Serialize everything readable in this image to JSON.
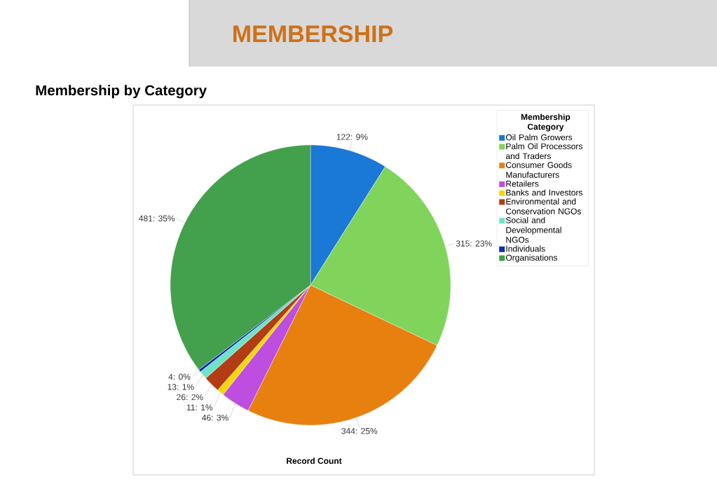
{
  "chart_data": {
    "type": "pie",
    "title": "MEMBERSHIP",
    "subtitle": "Membership by Category",
    "xlabel": "Record Count",
    "legend_title": "Membership Category",
    "categories": [
      "Oil Palm Growers",
      "Palm Oil Processors and Traders",
      "Consumer Goods Manufacturers",
      "Retailers",
      "Banks and Investors",
      "Environmental and Conservation NGOs",
      "Social and Developmental NGOs",
      "Individuals",
      "Organisations"
    ],
    "values": [
      122,
      315,
      344,
      46,
      11,
      26,
      13,
      4,
      481
    ],
    "colors": [
      "#1a78d6",
      "#80d45c",
      "#e8800f",
      "#bd4ee0",
      "#f4d70a",
      "#b23c14",
      "#6ee3c6",
      "#0d2db5",
      "#43a04c"
    ],
    "value_labels": [
      "122: 9%",
      "315: 23%",
      "344: 25%",
      "46: 3%",
      "11: 1%",
      "26: 2%",
      "13: 1%",
      "4: 0%",
      "481: 35%"
    ],
    "legend": "top right"
  }
}
